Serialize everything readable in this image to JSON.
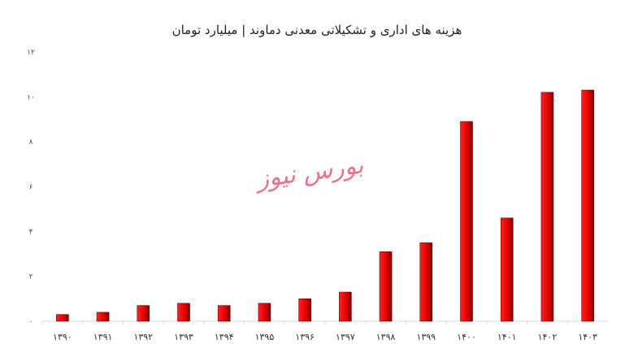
{
  "chart_data": {
    "type": "bar",
    "title": "هزینه های اداری و تشکیلاتی معدنی دماوند | میلیارد تومان",
    "categories": [
      "۱۳۹۰",
      "۱۳۹۱",
      "۱۳۹۲",
      "۱۳۹۳",
      "۱۳۹۴",
      "۱۳۹۵",
      "۱۳۹۶",
      "۱۳۹۷",
      "۱۳۹۸",
      "۱۳۹۹",
      "۱۴۰۰",
      "۱۴۰۱",
      "۱۴۰۲",
      "۱۴۰۳"
    ],
    "values": [
      0.3,
      0.4,
      0.7,
      0.8,
      0.7,
      0.8,
      1.0,
      1.3,
      3.1,
      3.5,
      8.9,
      4.6,
      10.2,
      10.3
    ],
    "ylim": [
      0,
      12
    ],
    "yticks": [
      0,
      2,
      4,
      6,
      8,
      10,
      12
    ],
    "ytick_labels": [
      "۰",
      "۲",
      "۴",
      "۶",
      "۸",
      "۱۰",
      "۱۲"
    ],
    "grid": false,
    "colors": {
      "bar_light": "#ff1a1a",
      "bar_dark": "#8a0000",
      "axis": "#d9d9d9"
    }
  },
  "watermark": "بورس نیوز"
}
